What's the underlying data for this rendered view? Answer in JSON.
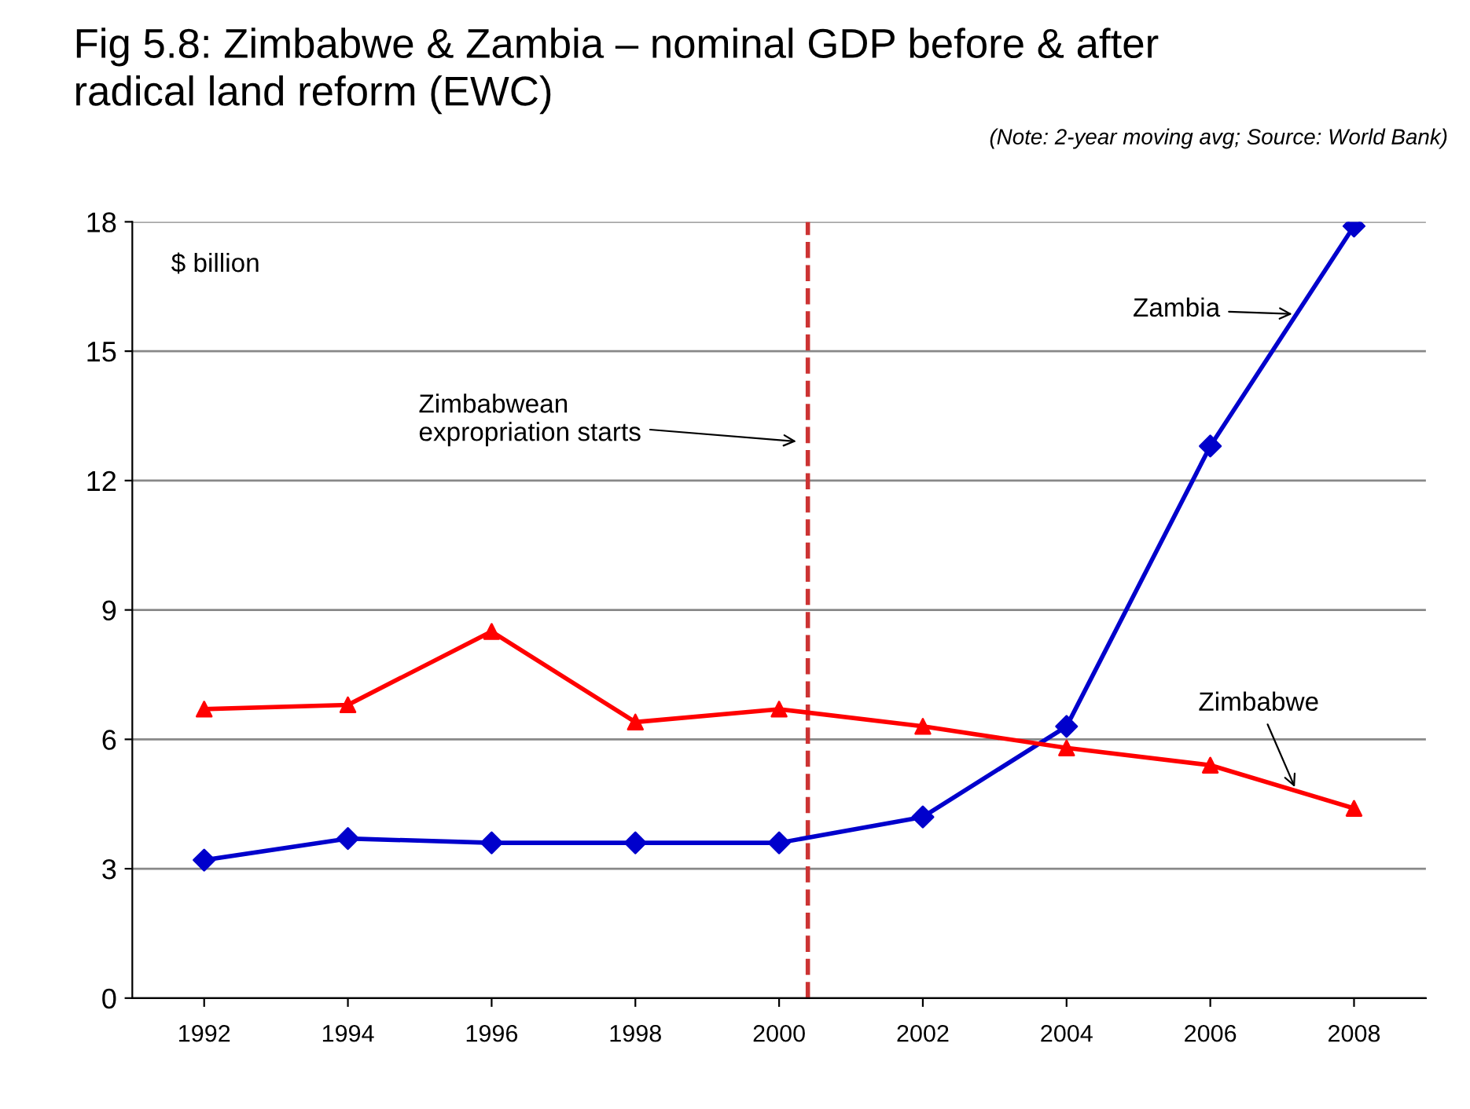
{
  "chart_data": {
    "type": "line",
    "title": "Fig 5.8: Zimbabwe & Zambia – nominal GDP before & after\nradical land reform (EWC)",
    "ylabel": "$ billion",
    "annotations": [
      "(Note: 2-year moving avg; Source: World Bank)"
    ],
    "x": [
      1992,
      1994,
      1996,
      1998,
      2000,
      2002,
      2004,
      2006,
      2008
    ],
    "xlim": [
      1991,
      2009
    ],
    "xticks": [
      1992,
      1994,
      1996,
      1998,
      2000,
      2002,
      2004,
      2006,
      2008
    ],
    "ylim": [
      0,
      18
    ],
    "yticks": [
      0,
      3,
      6,
      9,
      12,
      15,
      18
    ],
    "series": [
      {
        "name": "Zambia",
        "color": "#0000cc",
        "marker": "diamond",
        "values": [
          3.2,
          3.7,
          3.6,
          3.6,
          3.6,
          4.2,
          6.3,
          12.8,
          17.9
        ]
      },
      {
        "name": "Zimbabwe",
        "color": "#ff0000",
        "marker": "triangle",
        "values": [
          6.7,
          6.8,
          8.5,
          6.4,
          6.7,
          6.3,
          5.8,
          5.4,
          4.4
        ]
      }
    ],
    "ref_lines": [
      {
        "axis": "x",
        "value": 2000.4,
        "label": "Zimbabwean\nexpropriation starts",
        "color": "#cc3333",
        "line_style": "dashed"
      }
    ],
    "grid": "y",
    "legend": false,
    "line_style": "solid"
  }
}
